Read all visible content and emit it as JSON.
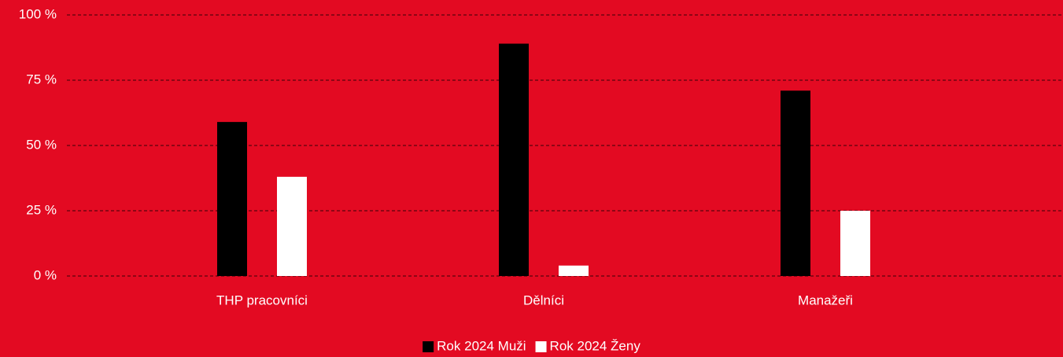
{
  "chart_data": {
    "type": "bar",
    "categories": [
      "THP pracovníci",
      "Dělníci",
      "Manažeři"
    ],
    "series": [
      {
        "name": "Rok 2024 Muži",
        "color": "#000000",
        "values": [
          59,
          89,
          71
        ]
      },
      {
        "name": "Rok 2024 Ženy",
        "color": "#ffffff",
        "values": [
          38,
          4,
          25
        ]
      }
    ],
    "ylim": [
      0,
      100
    ],
    "yticks": [
      {
        "value": 0,
        "label": "0 %"
      },
      {
        "value": 25,
        "label": "25 %"
      },
      {
        "value": 50,
        "label": "50 %"
      },
      {
        "value": 75,
        "label": "75 %"
      },
      {
        "value": 100,
        "label": "100 %"
      }
    ],
    "grid": true,
    "legend": "bottom"
  }
}
